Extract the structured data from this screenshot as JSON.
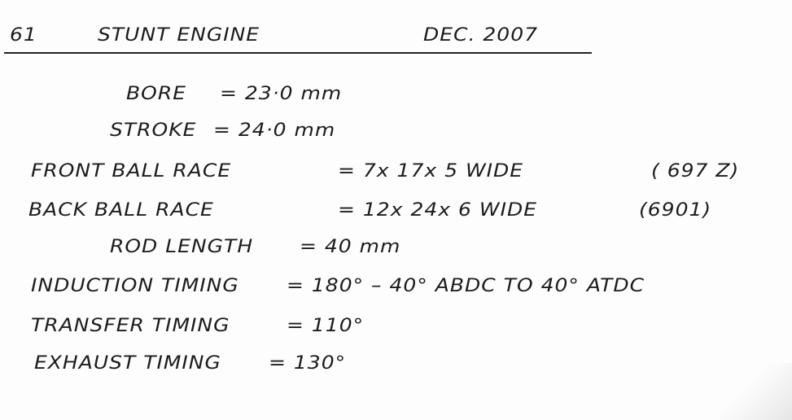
{
  "header": {
    "number": "61",
    "title": "STUNT ENGINE",
    "date": "DEC. 2007"
  },
  "lines": [
    {
      "label": "BORE",
      "value": "= 23·0 mm"
    },
    {
      "label": "STROKE",
      "value": "= 24·0 mm"
    },
    {
      "label": "FRONT BALL RACE",
      "value": "= 7x 17x 5 WIDE",
      "note": "( 697 Z)"
    },
    {
      "label": "BACK BALL RACE",
      "value": "= 12x 24x 6 WIDE",
      "note": "(6901)"
    },
    {
      "label": "ROD LENGTH",
      "value": "= 40 mm"
    },
    {
      "label": "INDUCTION TIMING",
      "value": "= 180° – 40° ABDC TO 40° ATDC"
    },
    {
      "label": "TRANSFER TIMING",
      "value": "= 110°"
    },
    {
      "label": "EXHAUST TIMING",
      "value": "= 130°"
    }
  ]
}
